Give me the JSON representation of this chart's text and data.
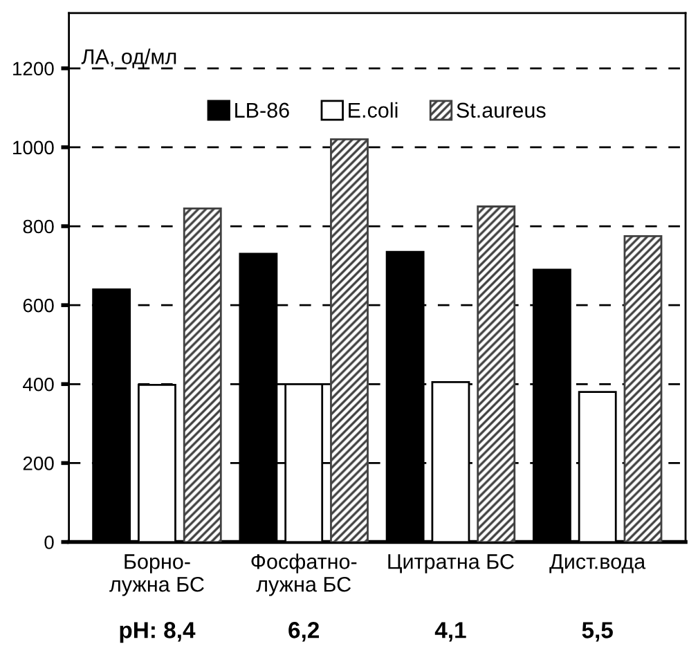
{
  "chart_data": {
    "type": "bar",
    "ylabel": "ЛА, од/мл",
    "categories": [
      "Борно-\nлужна БС",
      "Фосфатно-\nлужна БС",
      "Цитратна БС",
      "Дист.вода"
    ],
    "series": [
      {
        "name": "LB-86",
        "color": "#000000",
        "values": [
          640,
          730,
          735,
          690
        ]
      },
      {
        "name": "E.coli",
        "color": "#ffffff",
        "values": [
          398,
          400,
          405,
          380
        ]
      },
      {
        "name": "St.aureus",
        "color": "#404040",
        "values": [
          845,
          1020,
          850,
          775
        ]
      }
    ],
    "ylim": [
      0,
      1340
    ],
    "yticks": [
      0,
      200,
      400,
      600,
      800,
      1000,
      1200
    ],
    "grid": "y",
    "legend": "top",
    "annotations": [
      "pH: 8,4",
      "6,2",
      "4,1",
      "5,5"
    ]
  }
}
